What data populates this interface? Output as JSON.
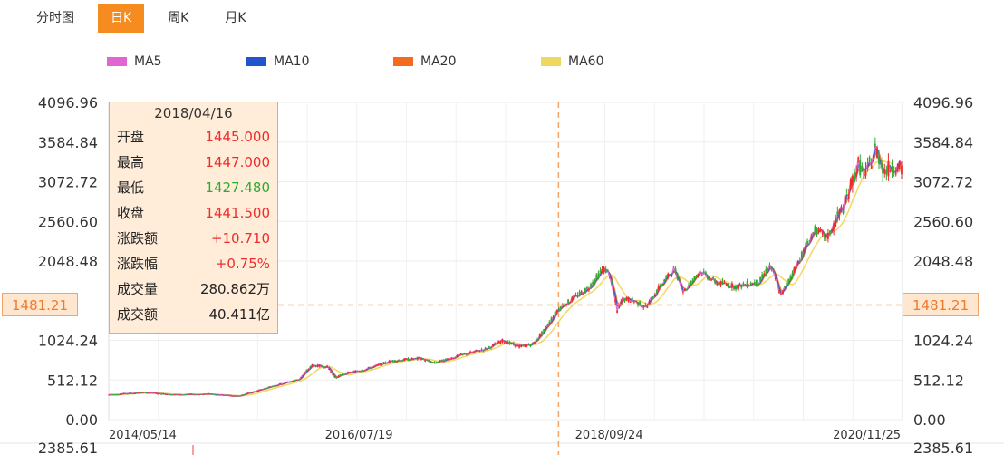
{
  "tabs": [
    {
      "label": "分时图",
      "active": false
    },
    {
      "label": "日K",
      "active": true
    },
    {
      "label": "周K",
      "active": false
    },
    {
      "label": "月K",
      "active": false
    }
  ],
  "legend": [
    {
      "name": "MA5",
      "color": "#e066d2"
    },
    {
      "name": "MA10",
      "color": "#2255cc"
    },
    {
      "name": "MA20",
      "color": "#f46b20"
    },
    {
      "name": "MA60",
      "color": "#f0d860"
    }
  ],
  "tooltip": {
    "date": "2018/04/16",
    "rows": [
      {
        "label": "开盘",
        "value": "1445.000",
        "tone": "red"
      },
      {
        "label": "最高",
        "value": "1447.000",
        "tone": "red"
      },
      {
        "label": "最低",
        "value": "1427.480",
        "tone": "green"
      },
      {
        "label": "收盘",
        "value": "1441.500",
        "tone": "red"
      },
      {
        "label": "涨跌额",
        "value": "+10.710",
        "tone": "red"
      },
      {
        "label": "涨跌幅",
        "value": "+0.75%",
        "tone": "red"
      },
      {
        "label": "成交量",
        "value": "280.862万",
        "tone": "dark"
      },
      {
        "label": "成交额",
        "value": "40.411亿",
        "tone": "dark"
      }
    ]
  },
  "crosshair": {
    "value_label": "1481.21",
    "price": 1481.21,
    "date": "2018/04/16"
  },
  "volume_axis_label": "2385.61",
  "colors": {
    "accent": "#f68c1f",
    "up": "#ee2c2c",
    "down": "#2eaa2e",
    "crosshair": "#f3a569"
  },
  "chart_data": {
    "type": "candlestick",
    "x_start": "2014/05/14",
    "x_end": "2021/04/16",
    "x_ticks": [
      "2014/05/14",
      "2016/07/19",
      "2018/09/24",
      "2020/11/25"
    ],
    "y_ticks": [
      "0.00",
      "512.12",
      "1024.24",
      "1481.21",
      "2048.48",
      "2560.60",
      "3072.72",
      "3584.84",
      "4096.96"
    ],
    "ylim": [
      0,
      4096.96
    ],
    "grid": true,
    "series": [
      {
        "name": "MA5",
        "color": "#e066d2"
      },
      {
        "name": "MA10",
        "color": "#2255cc"
      },
      {
        "name": "MA20",
        "color": "#f46b20"
      },
      {
        "name": "MA60",
        "color": "#f0d860"
      }
    ],
    "close_path": [
      [
        "2014/05/14",
        320
      ],
      [
        "2014/09/01",
        350
      ],
      [
        "2014/12/15",
        320
      ],
      [
        "2015/04/01",
        330
      ],
      [
        "2015/07/01",
        300
      ],
      [
        "2015/10/15",
        430
      ],
      [
        "2016/01/10",
        520
      ],
      [
        "2016/02/20",
        700
      ],
      [
        "2016/04/10",
        680
      ],
      [
        "2016/05/05",
        540
      ],
      [
        "2016/06/01",
        590
      ],
      [
        "2016/08/10",
        650
      ],
      [
        "2016/11/01",
        760
      ],
      [
        "2017/02/01",
        790
      ],
      [
        "2017/03/15",
        730
      ],
      [
        "2017/06/01",
        820
      ],
      [
        "2017/09/01",
        920
      ],
      [
        "2017/10/20",
        1020
      ],
      [
        "2017/12/15",
        940
      ],
      [
        "2018/01/25",
        980
      ],
      [
        "2018/03/01",
        1150
      ],
      [
        "2018/04/16",
        1441.5
      ],
      [
        "2018/06/01",
        1560
      ],
      [
        "2018/07/20",
        1700
      ],
      [
        "2018/09/05",
        1950
      ],
      [
        "2018/09/24",
        1900
      ],
      [
        "2018/10/20",
        1400
      ],
      [
        "2018/11/05",
        1560
      ],
      [
        "2018/12/10",
        1540
      ],
      [
        "2019/01/20",
        1450
      ],
      [
        "2019/03/01",
        1700
      ],
      [
        "2019/04/20",
        1950
      ],
      [
        "2019/05/20",
        1650
      ],
      [
        "2019/07/10",
        1920
      ],
      [
        "2019/09/01",
        1770
      ],
      [
        "2019/11/01",
        1720
      ],
      [
        "2020/01/15",
        1780
      ],
      [
        "2020/02/20",
        2000
      ],
      [
        "2020/03/25",
        1600
      ],
      [
        "2020/05/01",
        1900
      ],
      [
        "2020/07/10",
        2450
      ],
      [
        "2020/08/20",
        2350
      ],
      [
        "2020/10/15",
        2800
      ],
      [
        "2020/11/25",
        3300
      ],
      [
        "2020/12/20",
        3150
      ],
      [
        "2021/01/20",
        3500
      ],
      [
        "2021/02/20",
        3200
      ],
      [
        "2021/03/20",
        3300
      ],
      [
        "2021/04/16",
        3200
      ]
    ]
  }
}
